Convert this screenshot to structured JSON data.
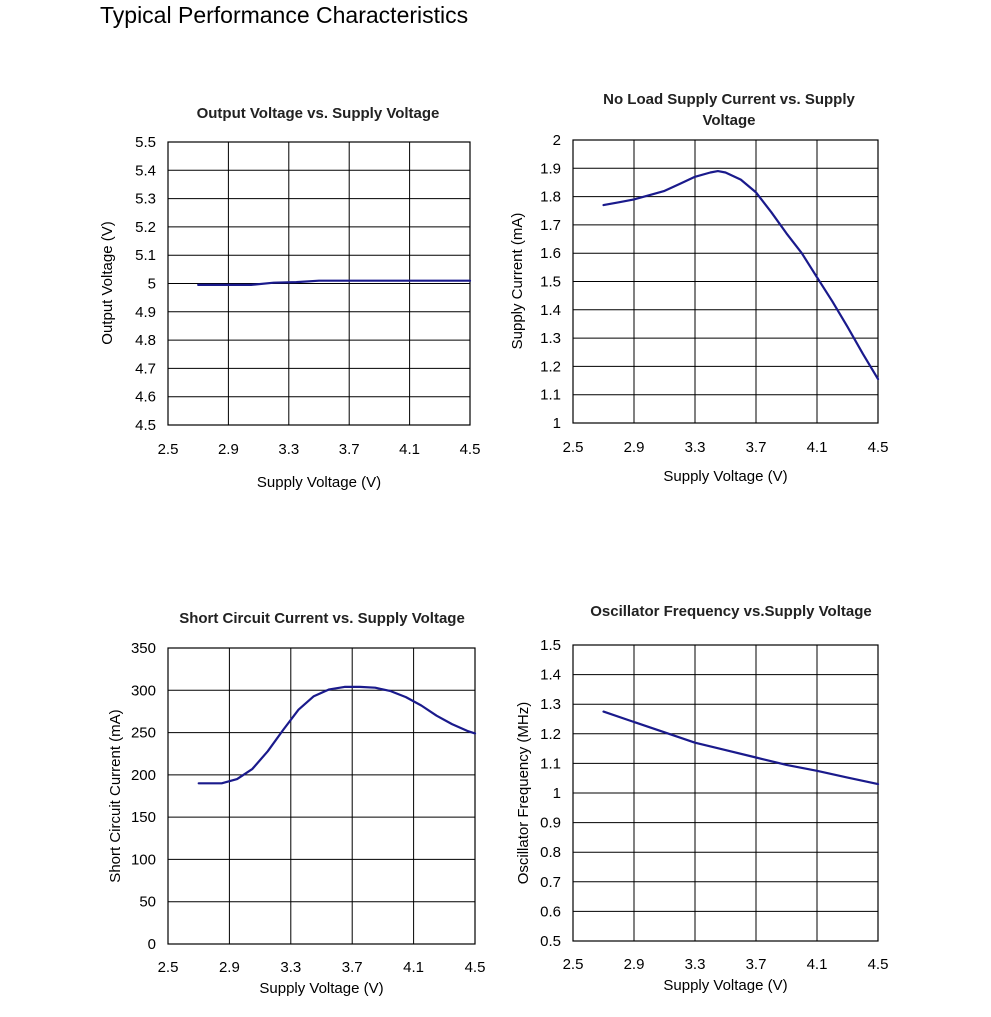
{
  "page": {
    "title": "Typical Performance Characteristics"
  },
  "chart_data": [
    {
      "type": "line",
      "title": [
        "Output Voltage vs. Supply Voltage"
      ],
      "xlabel": "Supply Voltage (V)",
      "ylabel": "Output Voltage (V)",
      "xlim": [
        2.5,
        4.5
      ],
      "ylim": [
        4.5,
        5.5
      ],
      "xticks": [
        "2.5",
        "2.9",
        "3.3",
        "3.7",
        "4.1",
        "4.5"
      ],
      "yticks": [
        "4.5",
        "4.6",
        "4.7",
        "4.8",
        "4.9",
        "5",
        "5.1",
        "5.2",
        "5.3",
        "5.4",
        "5.5"
      ],
      "grid": true,
      "series": [
        {
          "x": [
            2.7,
            2.9,
            3.05,
            3.2,
            3.35,
            3.5,
            3.7,
            3.9,
            4.1,
            4.3,
            4.5
          ],
          "y": [
            4.995,
            4.995,
            4.995,
            5.003,
            5.005,
            5.01,
            5.01,
            5.01,
            5.01,
            5.01,
            5.01
          ],
          "color": "#1a1a8c"
        }
      ]
    },
    {
      "type": "line",
      "title": [
        "No Load Supply Current vs. Supply",
        "Voltage"
      ],
      "xlabel": "Supply Voltage (V)",
      "ylabel": "Supply Current (mA)",
      "xlim": [
        2.5,
        4.5
      ],
      "ylim": [
        1,
        2
      ],
      "xticks": [
        "2.5",
        "2.9",
        "3.3",
        "3.7",
        "4.1",
        "4.5"
      ],
      "yticks": [
        "1",
        "1.1",
        "1.2",
        "1.3",
        "1.4",
        "1.5",
        "1.6",
        "1.7",
        "1.8",
        "1.9",
        "2"
      ],
      "grid": true,
      "series": [
        {
          "x": [
            2.7,
            2.8,
            2.9,
            3.0,
            3.1,
            3.2,
            3.3,
            3.4,
            3.45,
            3.5,
            3.6,
            3.7,
            3.8,
            3.9,
            4.0,
            4.1,
            4.2,
            4.3,
            4.4,
            4.5
          ],
          "y": [
            1.77,
            1.78,
            1.79,
            1.805,
            1.82,
            1.845,
            1.87,
            1.885,
            1.89,
            1.885,
            1.86,
            1.815,
            1.745,
            1.67,
            1.6,
            1.515,
            1.43,
            1.34,
            1.245,
            1.155
          ],
          "color": "#1a1a8c"
        }
      ]
    },
    {
      "type": "line",
      "title": [
        "Short Circuit Current vs. Supply Voltage"
      ],
      "xlabel": "Supply Voltage (V)",
      "ylabel": "Short Circuit Current (mA)",
      "xlim": [
        2.5,
        4.5
      ],
      "ylim": [
        0,
        350
      ],
      "xticks": [
        "2.5",
        "2.9",
        "3.3",
        "3.7",
        "4.1",
        "4.5"
      ],
      "yticks": [
        "0",
        "50",
        "100",
        "150",
        "200",
        "250",
        "300",
        "350"
      ],
      "grid": true,
      "series": [
        {
          "x": [
            2.7,
            2.85,
            2.95,
            3.05,
            3.15,
            3.25,
            3.35,
            3.45,
            3.55,
            3.65,
            3.75,
            3.85,
            3.95,
            4.05,
            4.15,
            4.25,
            4.35,
            4.45,
            4.5
          ],
          "y": [
            190,
            190,
            195,
            207,
            228,
            253,
            277,
            293,
            301,
            304,
            304,
            303,
            299,
            292,
            282,
            270,
            260,
            252,
            249
          ],
          "color": "#1a1a8c"
        }
      ]
    },
    {
      "type": "line",
      "title": [
        "Oscillator Frequency vs.Supply Voltage"
      ],
      "xlabel": "Supply Voltage (V)",
      "ylabel": "Oscillator Frequency (MHz)",
      "xlim": [
        2.5,
        4.5
      ],
      "ylim": [
        0.5,
        1.5
      ],
      "xticks": [
        "2.5",
        "2.9",
        "3.3",
        "3.7",
        "4.1",
        "4.5"
      ],
      "yticks": [
        "0.5",
        "0.6",
        "0.7",
        "0.8",
        "0.9",
        "1",
        "1.1",
        "1.2",
        "1.3",
        "1.4",
        "1.5"
      ],
      "grid": true,
      "series": [
        {
          "x": [
            2.7,
            2.9,
            3.1,
            3.3,
            3.5,
            3.7,
            3.9,
            4.1,
            4.3,
            4.5
          ],
          "y": [
            1.275,
            1.24,
            1.205,
            1.17,
            1.145,
            1.12,
            1.095,
            1.075,
            1.052,
            1.03
          ],
          "color": "#1a1a8c"
        }
      ]
    }
  ]
}
